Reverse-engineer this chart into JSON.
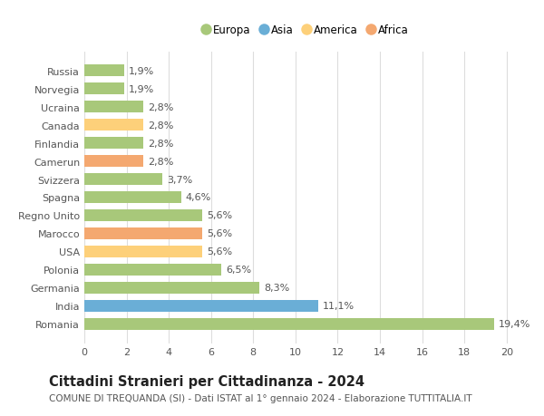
{
  "countries": [
    "Russia",
    "Norvegia",
    "Ucraina",
    "Canada",
    "Finlandia",
    "Camerun",
    "Svizzera",
    "Spagna",
    "Regno Unito",
    "Marocco",
    "USA",
    "Polonia",
    "Germania",
    "India",
    "Romania"
  ],
  "values": [
    1.9,
    1.9,
    2.8,
    2.8,
    2.8,
    2.8,
    3.7,
    4.6,
    5.6,
    5.6,
    5.6,
    6.5,
    8.3,
    11.1,
    19.4
  ],
  "labels": [
    "1,9%",
    "1,9%",
    "2,8%",
    "2,8%",
    "2,8%",
    "2,8%",
    "3,7%",
    "4,6%",
    "5,6%",
    "5,6%",
    "5,6%",
    "6,5%",
    "8,3%",
    "11,1%",
    "19,4%"
  ],
  "continents": [
    "Europa",
    "Europa",
    "Europa",
    "America",
    "Europa",
    "Africa",
    "Europa",
    "Europa",
    "Europa",
    "Africa",
    "America",
    "Europa",
    "Europa",
    "Asia",
    "Europa"
  ],
  "colors": {
    "Europa": "#a8c87a",
    "Asia": "#6aaed6",
    "America": "#fdd07a",
    "Africa": "#f4a870"
  },
  "legend_order": [
    "Europa",
    "Asia",
    "America",
    "Africa"
  ],
  "title": "Cittadini Stranieri per Cittadinanza - 2024",
  "subtitle": "COMUNE DI TREQUANDA (SI) - Dati ISTAT al 1° gennaio 2024 - Elaborazione TUTTITALIA.IT",
  "xlim": [
    0,
    21
  ],
  "xticks": [
    0,
    2,
    4,
    6,
    8,
    10,
    12,
    14,
    16,
    18,
    20
  ],
  "bg_color": "#ffffff",
  "grid_color": "#dddddd",
  "bar_height": 0.65,
  "title_fontsize": 10.5,
  "subtitle_fontsize": 7.5,
  "label_fontsize": 8,
  "tick_fontsize": 8,
  "legend_fontsize": 8.5
}
